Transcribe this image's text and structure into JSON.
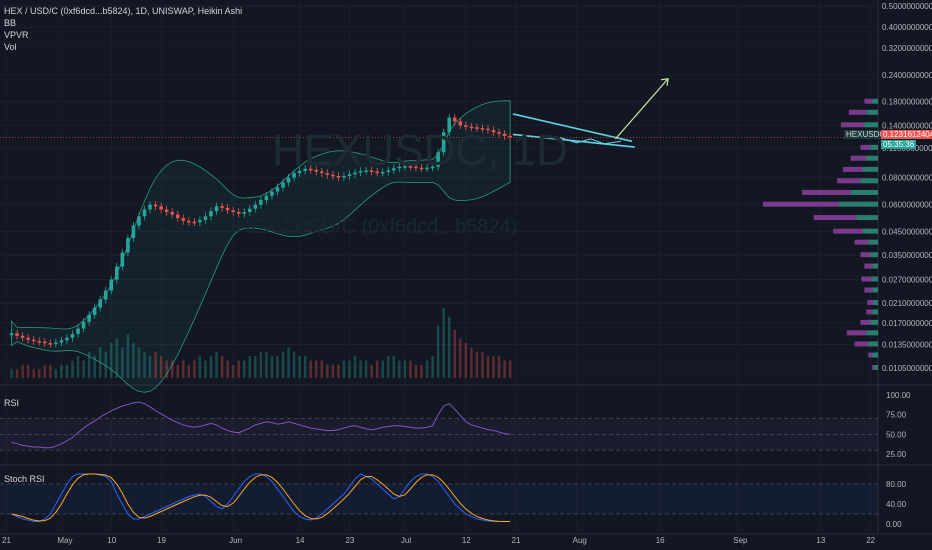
{
  "header": {
    "symbol_line": "HEX / USD/C (0xf6dcd...b5824), 1D, UNISWAP, Heikin Ashi",
    "indicators": [
      "BB",
      "VPVR",
      "Vol"
    ]
  },
  "watermark": {
    "big": "HEXUSDC, 1D",
    "small": "HEX / USD/C (0xf6dcd...b5824)"
  },
  "price_tag": {
    "symbol": "HEXUSDC",
    "price": "0.1231612404",
    "countdown": "05:35:36",
    "value": 0.1231612404
  },
  "panels": {
    "rsi_label": "RSI",
    "stoch_label": "Stoch RSI"
  },
  "colors": {
    "background": "#131722",
    "up": "#26a69a",
    "down": "#ef5350",
    "bb": "#2a9a84",
    "rsi": "#7e57c2",
    "stoch_k": "#2962ff",
    "stoch_d": "#f9a825",
    "trendline": "#5ed3e3",
    "projection": "#c8e6a0",
    "vpvr_up": "#2f8f7f",
    "vpvr_down": "#8e3fa0"
  },
  "chart_data": {
    "type": "candlestick",
    "price_scale": "log",
    "price_ticks": [
      "0.5000000000",
      "0.4000000000",
      "0.3200000000",
      "0.2400000000",
      "0.1800000000",
      "0.1400000000",
      "0.1100000000",
      "0.0800000000",
      "0.0600000000",
      "0.0450000000",
      "0.0350000000",
      "0.0270000000",
      "0.0210000000",
      "0.0170000000",
      "0.0135000000",
      "0.0105000000"
    ],
    "price_tick_values": [
      0.5,
      0.4,
      0.32,
      0.24,
      0.18,
      0.14,
      0.11,
      0.08,
      0.06,
      0.045,
      0.035,
      0.027,
      0.021,
      0.017,
      0.0135,
      0.0105
    ],
    "x_ticks": [
      "21",
      "May",
      "10",
      "19",
      "Jun",
      "14",
      "23",
      "Jul",
      "12",
      "21",
      "Aug",
      "16",
      "Sep",
      "13",
      "22"
    ],
    "x_tick_days": [
      0,
      10,
      19,
      28,
      41,
      53,
      62,
      72,
      83,
      92,
      103,
      118,
      132,
      147,
      156
    ],
    "rsi_ticks": [
      "100.00",
      "75.00",
      "50.00",
      "25.00"
    ],
    "rsi_tick_values": [
      100,
      75,
      50,
      25
    ],
    "stoch_ticks": [
      "80.00",
      "40.00",
      "0.00"
    ],
    "stoch_tick_values": [
      80,
      40,
      0
    ],
    "candles_close": [
      0.0152,
      0.0148,
      0.0145,
      0.0142,
      0.014,
      0.0139,
      0.0137,
      0.0136,
      0.0138,
      0.0141,
      0.0145,
      0.0151,
      0.016,
      0.0172,
      0.0185,
      0.02,
      0.0218,
      0.024,
      0.027,
      0.031,
      0.036,
      0.042,
      0.048,
      0.053,
      0.057,
      0.06,
      0.059,
      0.057,
      0.0555,
      0.054,
      0.052,
      0.0505,
      0.05,
      0.0498,
      0.051,
      0.053,
      0.056,
      0.059,
      0.058,
      0.0565,
      0.0555,
      0.0545,
      0.0555,
      0.0575,
      0.06,
      0.063,
      0.066,
      0.069,
      0.072,
      0.076,
      0.08,
      0.084,
      0.086,
      0.088,
      0.087,
      0.0855,
      0.084,
      0.0825,
      0.0815,
      0.0805,
      0.0815,
      0.083,
      0.0845,
      0.086,
      0.0865,
      0.0855,
      0.0845,
      0.085,
      0.0865,
      0.0885,
      0.09,
      0.0905,
      0.09,
      0.089,
      0.0885,
      0.089,
      0.09,
      0.105,
      0.13,
      0.152,
      0.146,
      0.14,
      0.138,
      0.137,
      0.136,
      0.135,
      0.133,
      0.13,
      0.128,
      0.125,
      0.1231
    ],
    "volume": [
      2,
      2,
      3,
      3,
      2,
      2,
      3,
      3,
      2,
      3,
      3,
      4,
      5,
      4,
      6,
      5,
      7,
      6,
      8,
      9,
      7,
      10,
      8,
      7,
      6,
      5,
      6,
      5,
      4,
      4,
      3,
      4,
      3,
      4,
      5,
      4,
      5,
      6,
      5,
      4,
      3,
      4,
      4,
      5,
      5,
      6,
      6,
      5,
      5,
      6,
      7,
      6,
      5,
      5,
      4,
      4,
      4,
      3,
      3,
      3,
      4,
      4,
      5,
      4,
      4,
      3,
      4,
      4,
      5,
      5,
      4,
      4,
      4,
      3,
      3,
      4,
      5,
      12,
      16,
      14,
      11,
      9,
      8,
      7,
      6,
      6,
      5,
      5,
      5,
      4,
      4
    ],
    "rsi": [
      40,
      38,
      36,
      35,
      34,
      34,
      33,
      33,
      35,
      38,
      42,
      46,
      52,
      58,
      63,
      67,
      72,
      76,
      80,
      83,
      86,
      88,
      90,
      91,
      89,
      85,
      80,
      76,
      72,
      68,
      65,
      62,
      60,
      59,
      60,
      62,
      64,
      62,
      58,
      55,
      53,
      52,
      55,
      58,
      62,
      64,
      66,
      65,
      63,
      64,
      66,
      64,
      62,
      60,
      58,
      57,
      56,
      55,
      55,
      56,
      58,
      60,
      61,
      59,
      57,
      56,
      57,
      59,
      60,
      61,
      61,
      60,
      59,
      58,
      58,
      59,
      61,
      75,
      86,
      89,
      82,
      74,
      66,
      62,
      60,
      58,
      56,
      55,
      53,
      51,
      50
    ],
    "stoch_k": [
      20,
      15,
      10,
      8,
      5,
      5,
      10,
      20,
      40,
      60,
      80,
      95,
      100,
      100,
      100,
      100,
      98,
      95,
      85,
      60,
      40,
      20,
      10,
      10,
      15,
      20,
      25,
      30,
      35,
      40,
      45,
      50,
      55,
      58,
      60,
      55,
      45,
      35,
      30,
      40,
      55,
      70,
      85,
      95,
      100,
      100,
      95,
      85,
      70,
      55,
      40,
      25,
      15,
      10,
      8,
      12,
      20,
      30,
      40,
      50,
      60,
      75,
      90,
      100,
      95,
      90,
      80,
      70,
      60,
      50,
      55,
      70,
      85,
      95,
      100,
      100,
      95,
      85,
      70,
      55,
      40,
      30,
      20,
      15,
      10,
      8,
      6,
      5,
      5,
      5,
      5
    ],
    "vpvr_bins": [
      0.0105,
      0.012,
      0.0135,
      0.0152,
      0.017,
      0.019,
      0.021,
      0.024,
      0.027,
      0.031,
      0.035,
      0.04,
      0.045,
      0.052,
      0.06,
      0.068,
      0.077,
      0.087,
      0.098,
      0.11,
      0.125,
      0.14,
      0.16,
      0.18
    ],
    "vpvr_up": [
      4,
      6,
      10,
      12,
      8,
      6,
      5,
      6,
      7,
      6,
      8,
      10,
      16,
      22,
      40,
      28,
      18,
      16,
      12,
      8,
      10,
      14,
      12,
      6
    ],
    "vpvr_down": [
      2,
      4,
      14,
      20,
      10,
      6,
      6,
      8,
      10,
      8,
      10,
      14,
      30,
      44,
      78,
      50,
      24,
      20,
      16,
      10,
      14,
      24,
      18,
      8
    ]
  }
}
